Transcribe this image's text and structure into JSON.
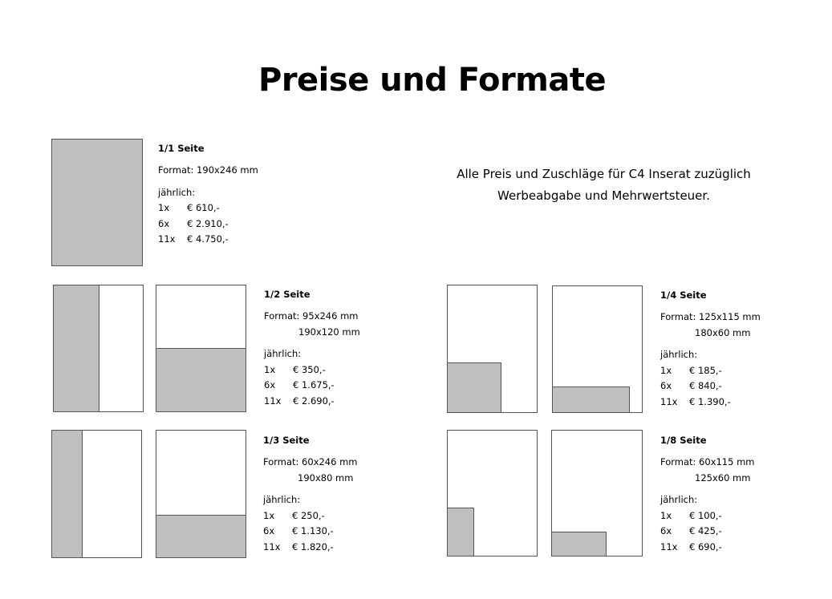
{
  "title": "Preise und Formate",
  "notice": {
    "line1": "Alle Preis und Zuschläge für C4 Inserat zuzüglich",
    "line2": "Werbeabgabe und Mehrwertsteuer."
  },
  "formats": {
    "full": {
      "heading": "1/1 Seite",
      "format1": "Format: 190x246 mm",
      "yearly": "jährlich:",
      "prices": [
        {
          "n": "1x",
          "p": "€ 610,-"
        },
        {
          "n": "6x",
          "p": "€ 2.910,-"
        },
        {
          "n": "11x",
          "p": "€ 4.750,-"
        }
      ]
    },
    "half": {
      "heading": "1/2 Seite",
      "format1": "Format: 95x246 mm",
      "format2": "190x120 mm",
      "yearly": "jährlich:",
      "prices": [
        {
          "n": "1x",
          "p": "€ 350,-"
        },
        {
          "n": "6x",
          "p": "€ 1.675,-"
        },
        {
          "n": "11x",
          "p": "€ 2.690,-"
        }
      ]
    },
    "third": {
      "heading": "1/3 Seite",
      "format1": "Format: 60x246 mm",
      "format2": "190x80 mm",
      "yearly": "jährlich:",
      "prices": [
        {
          "n": "1x",
          "p": "€ 250,-"
        },
        {
          "n": "6x",
          "p": "€ 1.130,-"
        },
        {
          "n": "11x",
          "p": "€ 1.820,-"
        }
      ]
    },
    "quarter": {
      "heading": "1/4 Seite",
      "format1": "Format: 125x115 mm",
      "format2": "180x60 mm",
      "yearly": "jährlich:",
      "prices": [
        {
          "n": "1x",
          "p": "€ 185,-"
        },
        {
          "n": "6x",
          "p": "€ 840,-"
        },
        {
          "n": "11x",
          "p": "€ 1.390,-"
        }
      ]
    },
    "eighth": {
      "heading": "1/8 Seite",
      "format1": "Format: 60x115 mm",
      "format2": "125x60 mm",
      "yearly": "jährlich:",
      "prices": [
        {
          "n": "1x",
          "p": "€ 100,-"
        },
        {
          "n": "6x",
          "p": "€ 425,-"
        },
        {
          "n": "11x",
          "p": "€ 690,-"
        }
      ]
    }
  }
}
